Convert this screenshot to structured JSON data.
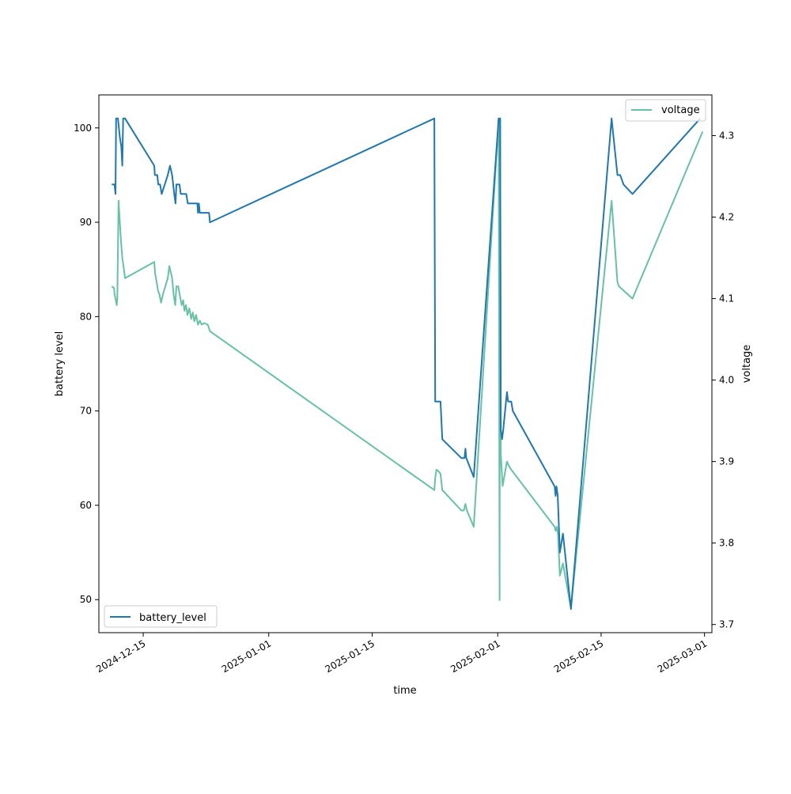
{
  "chart_data": {
    "type": "line",
    "x_is_date": true,
    "xlabel": "time",
    "ylabel_left": "battery level",
    "ylabel_right": "voltage",
    "xlim": [
      "2024-12-09",
      "2025-03-02"
    ],
    "ylim_left": [
      46.5,
      103.5
    ],
    "ylim_right": [
      3.69,
      4.35
    ],
    "x_ticks": [
      "2024-12-15",
      "2025-01-01",
      "2025-01-15",
      "2025-02-01",
      "2025-02-15",
      "2025-03-01"
    ],
    "y_ticks_left": [
      50,
      60,
      70,
      80,
      90,
      100
    ],
    "y_ticks_right": [
      3.7,
      3.8,
      3.9,
      4.0,
      4.1,
      4.2,
      4.3
    ],
    "grid": false,
    "series": [
      {
        "name": "battery_level",
        "axis": "left",
        "color": "#1f77b4",
        "legend": "lower-left",
        "points": [
          [
            "2024-12-10T18:00",
            94
          ],
          [
            "2024-12-11T03:00",
            94
          ],
          [
            "2024-12-11T06:00",
            93
          ],
          [
            "2024-12-11T08:00",
            101
          ],
          [
            "2024-12-11T14:00",
            101
          ],
          [
            "2024-12-11T20:00",
            99
          ],
          [
            "2024-12-12T01:00",
            98
          ],
          [
            "2024-12-12T04:00",
            96
          ],
          [
            "2024-12-12T07:00",
            101
          ],
          [
            "2024-12-12T13:00",
            101
          ],
          [
            "2024-12-16T12:00",
            96
          ],
          [
            "2024-12-16T14:00",
            95
          ],
          [
            "2024-12-16T22:00",
            95
          ],
          [
            "2024-12-17T01:00",
            94
          ],
          [
            "2024-12-17T07:00",
            94
          ],
          [
            "2024-12-17T12:00",
            93
          ],
          [
            "2024-12-18T08:00",
            95
          ],
          [
            "2024-12-18T15:00",
            96
          ],
          [
            "2024-12-18T22:00",
            95
          ],
          [
            "2024-12-19T05:00",
            93
          ],
          [
            "2024-12-19T09:00",
            92
          ],
          [
            "2024-12-19T12:00",
            94
          ],
          [
            "2024-12-19T22:00",
            94
          ],
          [
            "2024-12-20T02:00",
            93
          ],
          [
            "2024-12-20T20:00",
            93
          ],
          [
            "2024-12-21T01:00",
            92
          ],
          [
            "2024-12-22T08:00",
            92
          ],
          [
            "2024-12-22T10:00",
            91
          ],
          [
            "2024-12-22T13:00",
            92
          ],
          [
            "2024-12-22T16:00",
            91
          ],
          [
            "2024-12-23T22:00",
            91
          ],
          [
            "2024-12-24T01:00",
            90
          ],
          [
            "2025-01-23T10:00",
            101
          ],
          [
            "2025-01-23T13:00",
            71
          ],
          [
            "2025-01-24T06:00",
            71
          ],
          [
            "2025-01-24T12:00",
            67
          ],
          [
            "2025-01-27T02:00",
            65
          ],
          [
            "2025-01-27T12:00",
            65
          ],
          [
            "2025-01-27T15:00",
            66
          ],
          [
            "2025-01-27T18:00",
            65
          ],
          [
            "2025-01-28T18:00",
            63
          ],
          [
            "2025-02-01T03:00",
            101
          ],
          [
            "2025-02-01T08:00",
            101
          ],
          [
            "2025-02-01T10:00",
            68
          ],
          [
            "2025-02-01T14:00",
            67
          ],
          [
            "2025-02-01T18:00",
            68
          ],
          [
            "2025-02-02T06:00",
            72
          ],
          [
            "2025-02-02T10:00",
            71
          ],
          [
            "2025-02-02T20:00",
            71
          ],
          [
            "2025-02-03T01:00",
            70
          ],
          [
            "2025-02-08T17:00",
            62
          ],
          [
            "2025-02-08T20:00",
            61
          ],
          [
            "2025-02-08T23:00",
            62
          ],
          [
            "2025-02-09T03:00",
            61
          ],
          [
            "2025-02-09T10:00",
            55
          ],
          [
            "2025-02-09T20:00",
            57
          ],
          [
            "2025-02-10T22:00",
            49
          ],
          [
            "2025-02-16T10:00",
            101
          ],
          [
            "2025-02-17T05:00",
            95
          ],
          [
            "2025-02-17T14:00",
            95
          ],
          [
            "2025-02-18T01:00",
            94
          ],
          [
            "2025-02-19T06:00",
            93
          ],
          [
            "2025-02-28T10:00",
            101
          ]
        ]
      },
      {
        "name": "voltage",
        "axis": "right",
        "color": "#66c2a5",
        "legend": "upper-right",
        "points": [
          [
            "2024-12-10T18:00",
            4.115
          ],
          [
            "2024-12-11T01:00",
            4.113
          ],
          [
            "2024-12-11T03:00",
            4.105
          ],
          [
            "2024-12-11T06:00",
            4.1
          ],
          [
            "2024-12-11T10:00",
            4.092
          ],
          [
            "2024-12-11T12:00",
            4.1
          ],
          [
            "2024-12-11T16:00",
            4.22
          ],
          [
            "2024-12-11T19:00",
            4.2
          ],
          [
            "2024-12-12T00:00",
            4.17
          ],
          [
            "2024-12-12T04:00",
            4.15
          ],
          [
            "2024-12-12T08:00",
            4.14
          ],
          [
            "2024-12-12T13:00",
            4.125
          ],
          [
            "2024-12-16T12:00",
            4.145
          ],
          [
            "2024-12-16T15:00",
            4.13
          ],
          [
            "2024-12-16T20:00",
            4.12
          ],
          [
            "2024-12-17T00:00",
            4.11
          ],
          [
            "2024-12-17T05:00",
            4.105
          ],
          [
            "2024-12-17T10:00",
            4.095
          ],
          [
            "2024-12-17T16:00",
            4.105
          ],
          [
            "2024-12-18T08:00",
            4.125
          ],
          [
            "2024-12-18T13:00",
            4.14
          ],
          [
            "2024-12-18T22:00",
            4.125
          ],
          [
            "2024-12-19T03:00",
            4.105
          ],
          [
            "2024-12-19T08:00",
            4.092
          ],
          [
            "2024-12-19T12:00",
            4.115
          ],
          [
            "2024-12-19T18:00",
            4.115
          ],
          [
            "2024-12-20T00:00",
            4.102
          ],
          [
            "2024-12-20T05:00",
            4.092
          ],
          [
            "2024-12-20T10:00",
            4.098
          ],
          [
            "2024-12-20T14:00",
            4.085
          ],
          [
            "2024-12-20T19:00",
            4.092
          ],
          [
            "2024-12-21T00:00",
            4.08
          ],
          [
            "2024-12-21T06:00",
            4.088
          ],
          [
            "2024-12-21T12:00",
            4.075
          ],
          [
            "2024-12-21T17:00",
            4.083
          ],
          [
            "2024-12-21T22:00",
            4.072
          ],
          [
            "2024-12-22T04:00",
            4.08
          ],
          [
            "2024-12-22T10:00",
            4.068
          ],
          [
            "2024-12-22T16:00",
            4.073
          ],
          [
            "2024-12-22T22:00",
            4.068
          ],
          [
            "2024-12-23T06:00",
            4.07
          ],
          [
            "2024-12-23T18:00",
            4.068
          ],
          [
            "2024-12-24T01:00",
            4.06
          ],
          [
            "2025-01-23T10:00",
            3.865
          ],
          [
            "2025-01-23T13:00",
            3.88
          ],
          [
            "2025-01-23T17:00",
            3.89
          ],
          [
            "2025-01-24T00:00",
            3.888
          ],
          [
            "2025-01-24T06:00",
            3.885
          ],
          [
            "2025-01-24T12:00",
            3.865
          ],
          [
            "2025-01-27T02:00",
            3.84
          ],
          [
            "2025-01-27T10:00",
            3.84
          ],
          [
            "2025-01-27T15:00",
            3.848
          ],
          [
            "2025-01-27T20:00",
            3.84
          ],
          [
            "2025-01-28T18:00",
            3.82
          ],
          [
            "2025-02-01T03:00",
            4.32
          ],
          [
            "2025-02-01T06:00",
            3.73
          ],
          [
            "2025-02-01T08:00",
            4.32
          ],
          [
            "2025-02-01T10:00",
            3.91
          ],
          [
            "2025-02-01T16:00",
            3.87
          ],
          [
            "2025-02-02T06:00",
            3.9
          ],
          [
            "2025-02-02T12:00",
            3.895
          ],
          [
            "2025-02-02T20:00",
            3.89
          ],
          [
            "2025-02-08T17:00",
            3.82
          ],
          [
            "2025-02-08T20:00",
            3.815
          ],
          [
            "2025-02-09T00:00",
            3.82
          ],
          [
            "2025-02-09T04:00",
            3.81
          ],
          [
            "2025-02-09T10:00",
            3.76
          ],
          [
            "2025-02-09T20:00",
            3.775
          ],
          [
            "2025-02-10T22:00",
            3.72
          ],
          [
            "2025-02-16T10:00",
            4.22
          ],
          [
            "2025-02-17T05:00",
            4.12
          ],
          [
            "2025-02-17T10:00",
            4.115
          ],
          [
            "2025-02-19T06:00",
            4.1
          ],
          [
            "2025-02-28T18:00",
            4.305
          ]
        ]
      }
    ]
  }
}
